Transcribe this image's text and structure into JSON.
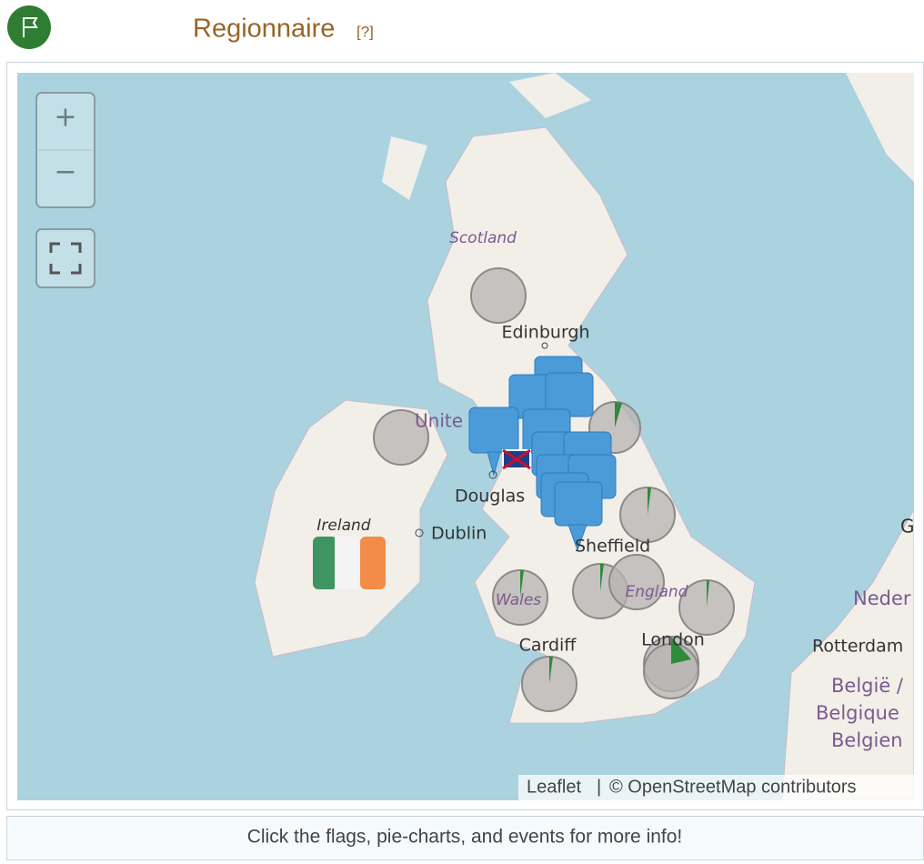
{
  "header": {
    "title": "Regionnaire",
    "help": "[?]"
  },
  "controls": {
    "zoom_in": "+",
    "zoom_out": "−"
  },
  "map": {
    "labels": [
      "Scotland",
      "Edinburgh",
      "Unite",
      "Douglas",
      "Ireland",
      "Dublin",
      "Sheffield",
      "Wales",
      "England",
      "Cardiff",
      "London",
      "Neder",
      "Rotterdam",
      "België /",
      "Belgique",
      "Belgien",
      "G"
    ],
    "attribution": {
      "leaflet": "Leaflet",
      "separator": "|",
      "credit": "© OpenStreetMap contributors"
    }
  },
  "footer": "Click the flags, pie-charts, and events for more info!"
}
